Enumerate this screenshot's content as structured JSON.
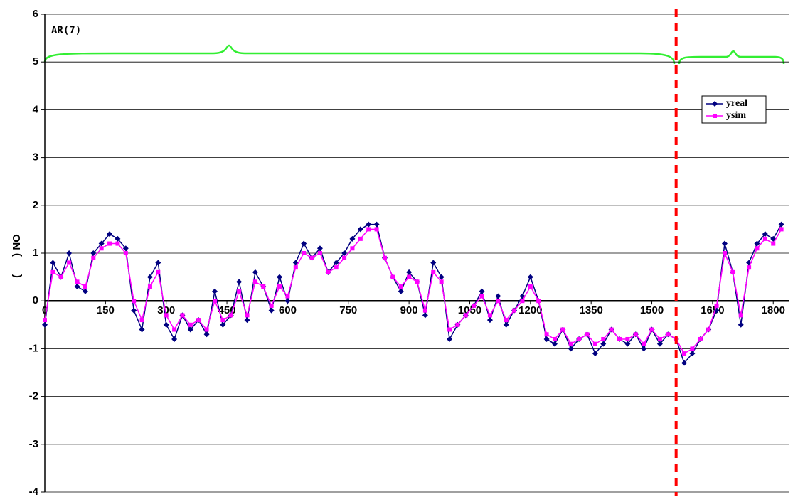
{
  "chart_data": {
    "type": "line",
    "annotation": "AR(7)",
    "y_label": "(      ) NO",
    "x": [
      0,
      20,
      40,
      60,
      80,
      100,
      120,
      140,
      160,
      180,
      200,
      220,
      240,
      260,
      280,
      300,
      320,
      340,
      360,
      380,
      400,
      420,
      440,
      460,
      480,
      500,
      520,
      540,
      560,
      580,
      600,
      620,
      640,
      660,
      680,
      700,
      720,
      740,
      760,
      780,
      800,
      820,
      840,
      860,
      880,
      900,
      920,
      940,
      960,
      980,
      1000,
      1020,
      1040,
      1060,
      1080,
      1100,
      1120,
      1140,
      1160,
      1180,
      1200,
      1220,
      1240,
      1260,
      1280,
      1300,
      1320,
      1340,
      1360,
      1380,
      1400,
      1420,
      1440,
      1460,
      1480,
      1500,
      1520,
      1540,
      1560,
      1580,
      1600,
      1620,
      1640,
      1660,
      1680,
      1700,
      1720,
      1740,
      1760,
      1780,
      1800,
      1820
    ],
    "series": [
      {
        "name": "yreal",
        "color": "#000080",
        "marker": "diamond",
        "values": [
          -0.5,
          0.8,
          0.5,
          1.0,
          0.3,
          0.2,
          1.0,
          1.2,
          1.4,
          1.3,
          1.1,
          -0.2,
          -0.6,
          0.5,
          0.8,
          -0.5,
          -0.8,
          -0.3,
          -0.6,
          -0.4,
          -0.7,
          0.2,
          -0.5,
          -0.3,
          0.4,
          -0.4,
          0.6,
          0.3,
          -0.2,
          0.5,
          0.0,
          0.8,
          1.2,
          0.9,
          1.1,
          0.6,
          0.8,
          1.0,
          1.3,
          1.5,
          1.6,
          1.6,
          0.9,
          0.5,
          0.2,
          0.6,
          0.4,
          -0.3,
          0.8,
          0.5,
          -0.8,
          -0.5,
          -0.3,
          -0.1,
          0.2,
          -0.4,
          0.1,
          -0.5,
          -0.2,
          0.1,
          0.5,
          0.0,
          -0.8,
          -0.9,
          -0.6,
          -1.0,
          -0.8,
          -0.7,
          -1.1,
          -0.9,
          -0.6,
          -0.8,
          -0.9,
          -0.7,
          -1.0,
          -0.6,
          -0.9,
          -0.7,
          -0.8,
          -1.3,
          -1.1,
          -0.8,
          -0.6,
          -0.2,
          1.2,
          0.6,
          -0.5,
          0.8,
          1.2,
          1.4,
          1.3,
          1.6
        ]
      },
      {
        "name": "ysim",
        "color": "#ff00ff",
        "marker": "square",
        "values": [
          -0.4,
          0.6,
          0.5,
          0.8,
          0.4,
          0.3,
          0.9,
          1.1,
          1.2,
          1.2,
          1.0,
          0.0,
          -0.4,
          0.3,
          0.6,
          -0.3,
          -0.6,
          -0.3,
          -0.5,
          -0.4,
          -0.6,
          0.0,
          -0.4,
          -0.3,
          0.2,
          -0.3,
          0.4,
          0.3,
          -0.1,
          0.3,
          0.1,
          0.7,
          1.0,
          0.9,
          1.0,
          0.6,
          0.7,
          0.9,
          1.1,
          1.3,
          1.5,
          1.5,
          0.9,
          0.5,
          0.3,
          0.5,
          0.4,
          -0.2,
          0.6,
          0.4,
          -0.6,
          -0.5,
          -0.3,
          -0.1,
          0.1,
          -0.3,
          0.0,
          -0.4,
          -0.2,
          0.0,
          0.3,
          0.0,
          -0.7,
          -0.8,
          -0.6,
          -0.9,
          -0.8,
          -0.7,
          -0.9,
          -0.8,
          -0.6,
          -0.8,
          -0.8,
          -0.7,
          -0.9,
          -0.6,
          -0.8,
          -0.7,
          -0.8,
          -1.1,
          -1.0,
          -0.8,
          -0.6,
          -0.1,
          1.0,
          0.6,
          -0.3,
          0.7,
          1.1,
          1.3,
          1.2,
          1.5
        ]
      }
    ],
    "xlim": [
      0,
      1840
    ],
    "xticks": [
      0,
      150,
      300,
      450,
      600,
      750,
      900,
      1050,
      1200,
      1350,
      1500,
      1650,
      1800
    ],
    "ylim": [
      -4,
      6
    ],
    "yticks": [
      -4,
      -3,
      -2,
      -1,
      0,
      1,
      2,
      3,
      4,
      5,
      6
    ],
    "grid": true,
    "legend": "upper right",
    "vline": {
      "x": 1560,
      "color": "#ff0000"
    }
  }
}
